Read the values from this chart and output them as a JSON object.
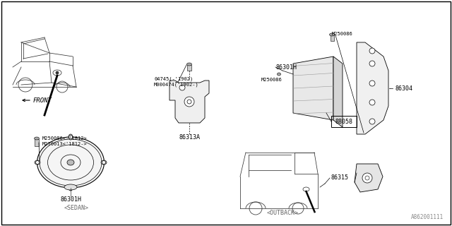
{
  "bg_color": "#ffffff",
  "line_color": "#000000",
  "gray_line": "#555555",
  "diagram_id": "A862001111",
  "labels": {
    "sedan": "<SEDAN>",
    "outback": "<OUTBACK>",
    "front": "FRONT",
    "86301H_right": "86301H",
    "86301H_speaker": "86301H",
    "86304": "86304",
    "88058": "88058",
    "86313A": "86313A",
    "86315": "86315",
    "M250086_top": "M250086",
    "M250086_mid": "M250086",
    "M250086_screw1": "M250086<-'1812>",
    "M270013": "M270013<'1812->",
    "04745": "04745(-'1902)",
    "M000474": "M000474('1902-)"
  },
  "font_size": 6.0,
  "small_font": 5.0
}
